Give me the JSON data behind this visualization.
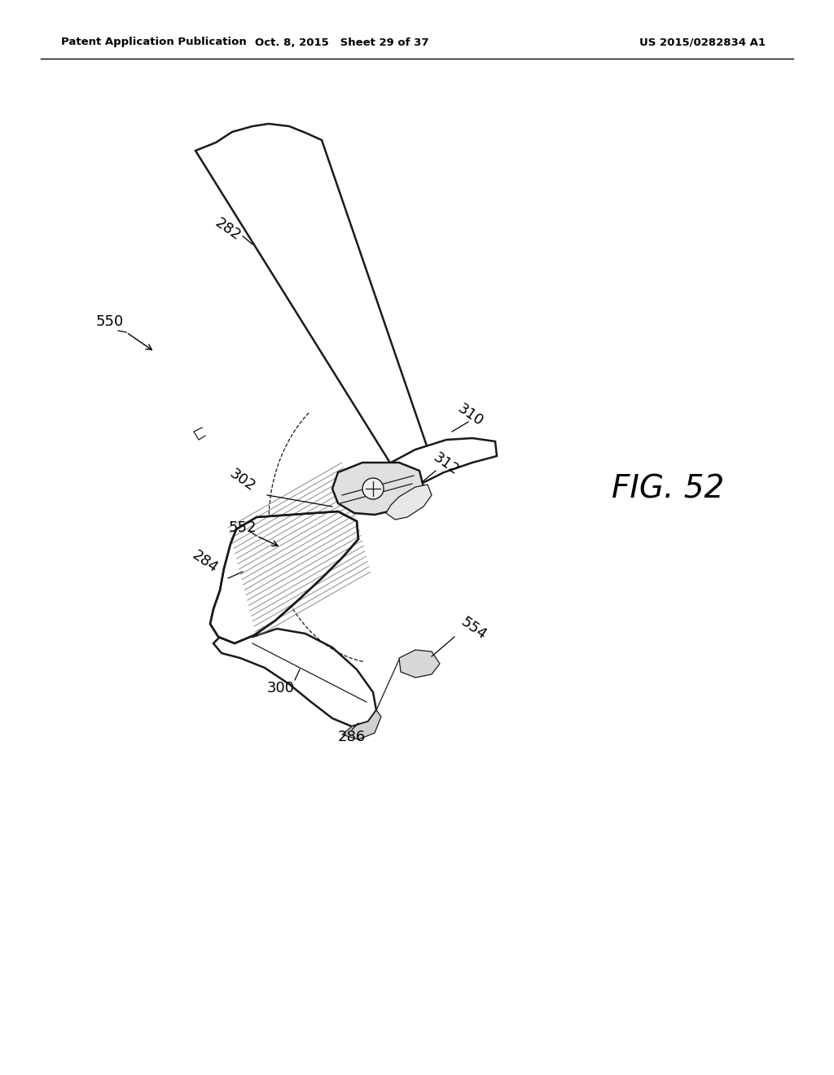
{
  "bg_color": "#ffffff",
  "header_left": "Patent Application Publication",
  "header_mid": "Oct. 8, 2015   Sheet 29 of 37",
  "header_right": "US 2015/0282834 A1",
  "fig_label": "FIG. 52",
  "dark": "#1a1a1a",
  "gray": "#888888",
  "light_gray": "#cccccc"
}
